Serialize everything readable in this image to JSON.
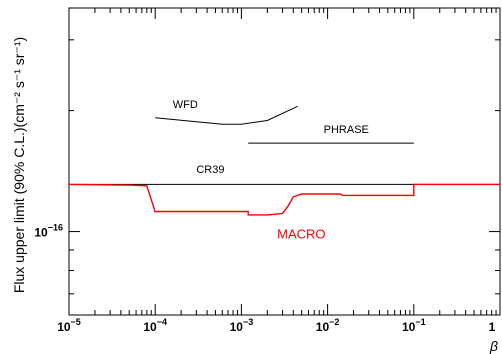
{
  "chart_data": {
    "type": "line",
    "xscale": "log",
    "yscale": "log",
    "xlim": [
      1e-05,
      1
    ],
    "ylim": [
      6.2e-17,
      3.6e-16
    ],
    "xlabel": "β",
    "ylabel": "Flux upper limit (90% C.L.)(cm⁻² s⁻¹ sr⁻¹)",
    "x_tick_labels": [
      {
        "value": 1e-05,
        "base": "10",
        "exp": "−5"
      },
      {
        "value": 0.0001,
        "base": "10",
        "exp": "−4"
      },
      {
        "value": 0.001,
        "base": "10",
        "exp": "−3"
      },
      {
        "value": 0.01,
        "base": "10",
        "exp": "−2"
      },
      {
        "value": 0.1,
        "base": "10",
        "exp": "−1"
      },
      {
        "value": 1,
        "text": "1"
      }
    ],
    "y_tick_labels": [
      {
        "value": 1e-16,
        "base": "10",
        "exp": "−16"
      }
    ],
    "series": [
      {
        "name": "WFD",
        "color": "#000000",
        "x": [
          0.0001,
          0.0006,
          0.001,
          0.002,
          0.0045
        ],
        "y": [
          1.92e-16,
          1.85e-16,
          1.85e-16,
          1.89e-16,
          2.05e-16
        ]
      },
      {
        "name": "PHRASE",
        "color": "#000000",
        "x": [
          0.0012,
          0.1
        ],
        "y": [
          1.66e-16,
          1.66e-16
        ]
      },
      {
        "name": "CR39",
        "color": "#000000",
        "x": [
          1e-05,
          1
        ],
        "y": [
          1.31e-16,
          1.31e-16
        ]
      },
      {
        "name": "MACRO",
        "color": "#ff0000",
        "x": [
          1e-05,
          5e-05,
          8e-05,
          9e-05,
          0.0001,
          0.000105,
          0.0012,
          0.0012,
          0.002,
          0.003,
          0.0035,
          0.004,
          0.005,
          0.014,
          0.015,
          0.1,
          0.1,
          1
        ],
        "y": [
          1.31e-16,
          1.305e-16,
          1.3e-16,
          1.2e-16,
          1.12e-16,
          1.122e-16,
          1.122e-16,
          1.1e-16,
          1.1e-16,
          1.11e-16,
          1.16e-16,
          1.22e-16,
          1.24e-16,
          1.24e-16,
          1.23e-16,
          1.23e-16,
          1.31e-16,
          1.31e-16
        ]
      }
    ],
    "annotations": [
      {
        "text": "WFD",
        "x": 0.00016,
        "y": 2.03e-16,
        "color": "#000000"
      },
      {
        "text": "PHRASE",
        "x": 0.009,
        "y": 1.76e-16,
        "color": "#000000"
      },
      {
        "text": "CR39",
        "x": 0.0003,
        "y": 1.4e-16,
        "color": "#000000"
      },
      {
        "text": "MACRO",
        "x": 0.0026,
        "y": 9.6e-17,
        "color": "#ff0000"
      }
    ],
    "grid": false,
    "legend": "none"
  }
}
